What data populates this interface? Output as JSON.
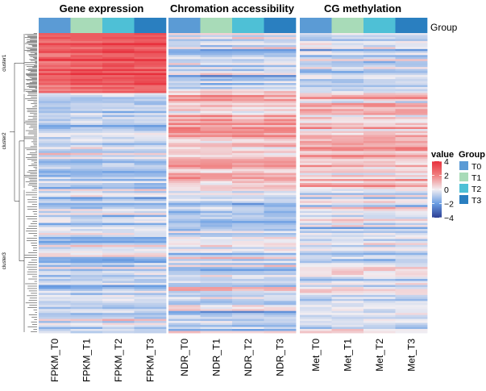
{
  "chart_data": {
    "type": "heatmap",
    "title": "",
    "panels": [
      {
        "title": "Gene expression",
        "columns": [
          "FPKM_T0",
          "FPKM_T1",
          "FPKM_T2",
          "FPKM_T3"
        ]
      },
      {
        "title": "Chromation accessibility",
        "columns": [
          "NDR_T0",
          "NDR_T1",
          "NDR_T2",
          "NDR_T3"
        ]
      },
      {
        "title": "CG methylation",
        "columns": [
          "Met_T0",
          "Met_T1",
          "Met_T2",
          "Met_T3"
        ]
      }
    ],
    "group_annotation": {
      "label": "Group",
      "column_groups": [
        "T0",
        "T1",
        "T2",
        "T3"
      ],
      "levels": [
        {
          "name": "T0",
          "color": "#5b9bd5"
        },
        {
          "name": "T1",
          "color": "#a8dbb8"
        },
        {
          "name": "T2",
          "color": "#4ec0d6"
        },
        {
          "name": "T3",
          "color": "#2a7fc0"
        }
      ]
    },
    "row_clusters": [
      {
        "name": "cluster1",
        "fraction": 0.2,
        "profile": {
          "expression": 2.6,
          "accessibility": -0.7,
          "methylation": -0.6
        }
      },
      {
        "name": "cluster2",
        "fraction": 0.32,
        "profile": {
          "expression": -0.8,
          "accessibility": 1.0,
          "methylation": 0.7
        }
      },
      {
        "name": "cluster3",
        "fraction": 0.48,
        "profile": {
          "expression": -0.6,
          "accessibility": -0.5,
          "methylation": -0.3
        }
      }
    ],
    "color_scale": {
      "title": "value",
      "min": -4,
      "max": 4,
      "ticks": [
        4,
        2,
        0,
        -2,
        -4
      ],
      "colors": {
        "low": "#2c3e94",
        "mid_low": "#6a9ee3",
        "mid": "#f2eef2",
        "mid_high": "#f08080",
        "high": "#e8303c"
      }
    },
    "row_dendrogram": true
  },
  "legend": {
    "value_title": "value",
    "group_title": "Group"
  }
}
